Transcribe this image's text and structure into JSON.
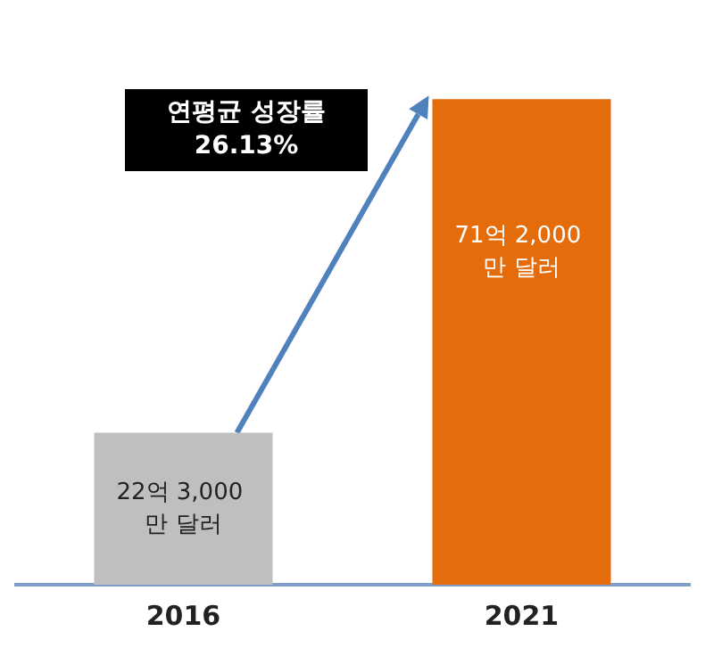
{
  "chart_data": {
    "type": "bar",
    "categories": [
      "2016",
      "2021"
    ],
    "values": [
      22.3,
      71.2
    ],
    "colors": [
      "#bfbfbf",
      "#e46c0a"
    ],
    "value_labels": [
      "22억 3,000 만 달러",
      "71억 2,000 만 달러"
    ],
    "annotations": [
      "연평균 성장률 26.13%"
    ]
  }
}
